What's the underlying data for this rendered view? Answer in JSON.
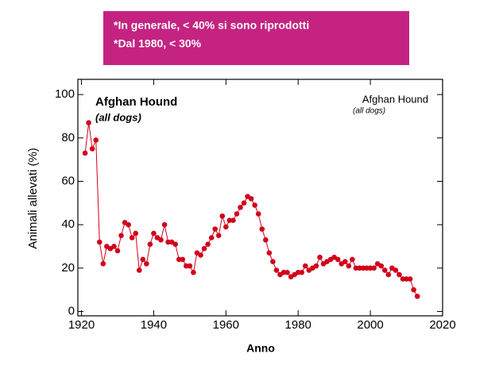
{
  "chart_data": {
    "type": "line",
    "banner": [
      "*In generale, < 40% si sono riprodotti",
      "*Dal 1980, < 30%"
    ],
    "title": "Afghan Hound",
    "subtitle": "(all dogs)",
    "annotation": "Afghan Hound",
    "annotation_subtitle": "(all dogs)",
    "xlabel": "Anno",
    "ylabel": "Animali allevati (%)",
    "xlim": [
      1919,
      2020
    ],
    "ylim": [
      -2,
      107
    ],
    "xticks": [
      1920,
      1940,
      1960,
      1980,
      2000,
      2020
    ],
    "yticks": [
      0,
      20,
      40,
      60,
      80,
      100
    ],
    "color": "#d0021b",
    "x": [
      1921,
      1922,
      1923,
      1924,
      1925,
      1926,
      1927,
      1928,
      1929,
      1930,
      1931,
      1932,
      1933,
      1934,
      1935,
      1936,
      1937,
      1938,
      1939,
      1940,
      1941,
      1942,
      1943,
      1944,
      1945,
      1946,
      1947,
      1948,
      1949,
      1950,
      1951,
      1952,
      1953,
      1954,
      1955,
      1956,
      1957,
      1958,
      1959,
      1960,
      1961,
      1962,
      1963,
      1964,
      1965,
      1966,
      1967,
      1968,
      1969,
      1970,
      1971,
      1972,
      1973,
      1974,
      1975,
      1976,
      1977,
      1978,
      1979,
      1980,
      1981,
      1982,
      1983,
      1984,
      1985,
      1986,
      1987,
      1988,
      1989,
      1990,
      1991,
      1992,
      1993,
      1994,
      1995,
      1996,
      1997,
      1998,
      1999,
      2000,
      2001,
      2002,
      2003,
      2004,
      2005,
      2006,
      2007,
      2008,
      2009,
      2010,
      2011,
      2012,
      2013
    ],
    "values": [
      73,
      87,
      75,
      79,
      32,
      22,
      30,
      29,
      30,
      28,
      35,
      41,
      40,
      34,
      36,
      19,
      24,
      22,
      31,
      36,
      34,
      33,
      40,
      32,
      32,
      31,
      24,
      24,
      21,
      21,
      18,
      27,
      26,
      29,
      31,
      34,
      38,
      35,
      44,
      39,
      42,
      42,
      45,
      48,
      50,
      53,
      52,
      49,
      45,
      38,
      33,
      27,
      23,
      19,
      17,
      18,
      18,
      16,
      17,
      18,
      18,
      21,
      19,
      20,
      21,
      25,
      22,
      23,
      24,
      25,
      24,
      22,
      23,
      21,
      24,
      20,
      20,
      20,
      20,
      20,
      20,
      22,
      21,
      19,
      17,
      20,
      19,
      17,
      15,
      15,
      15,
      10,
      7
    ]
  }
}
